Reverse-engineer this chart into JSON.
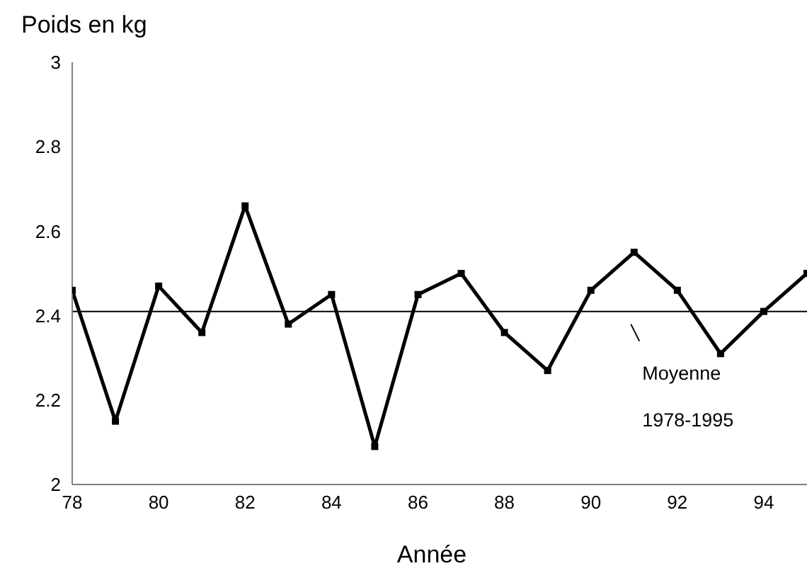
{
  "chart_data": {
    "type": "line",
    "ylabel": "Poids en  kg",
    "xlabel": "Année",
    "x": [
      78,
      79,
      80,
      81,
      82,
      83,
      84,
      85,
      86,
      87,
      88,
      89,
      90,
      91,
      92,
      93,
      94,
      95
    ],
    "series": [
      {
        "color": "#000000",
        "values": [
          2.46,
          2.15,
          2.47,
          2.36,
          2.66,
          2.38,
          2.45,
          2.09,
          2.45,
          2.5,
          2.36,
          2.27,
          2.46,
          2.55,
          2.46,
          2.31,
          2.41,
          2.5
        ]
      }
    ],
    "xlim": [
      78,
      95
    ],
    "xticks": [
      78,
      80,
      82,
      84,
      86,
      88,
      90,
      92,
      94
    ],
    "ylim": [
      2,
      3
    ],
    "yticks": [
      2,
      2.2,
      2.4,
      2.6,
      2.8,
      3
    ],
    "ref_lines": [
      {
        "axis": "y",
        "value": 2.41,
        "label": "Moyenne 1978-1995",
        "color": "#000000"
      }
    ],
    "grid": false,
    "legend": false,
    "marker": "square",
    "line_style": "solid"
  }
}
